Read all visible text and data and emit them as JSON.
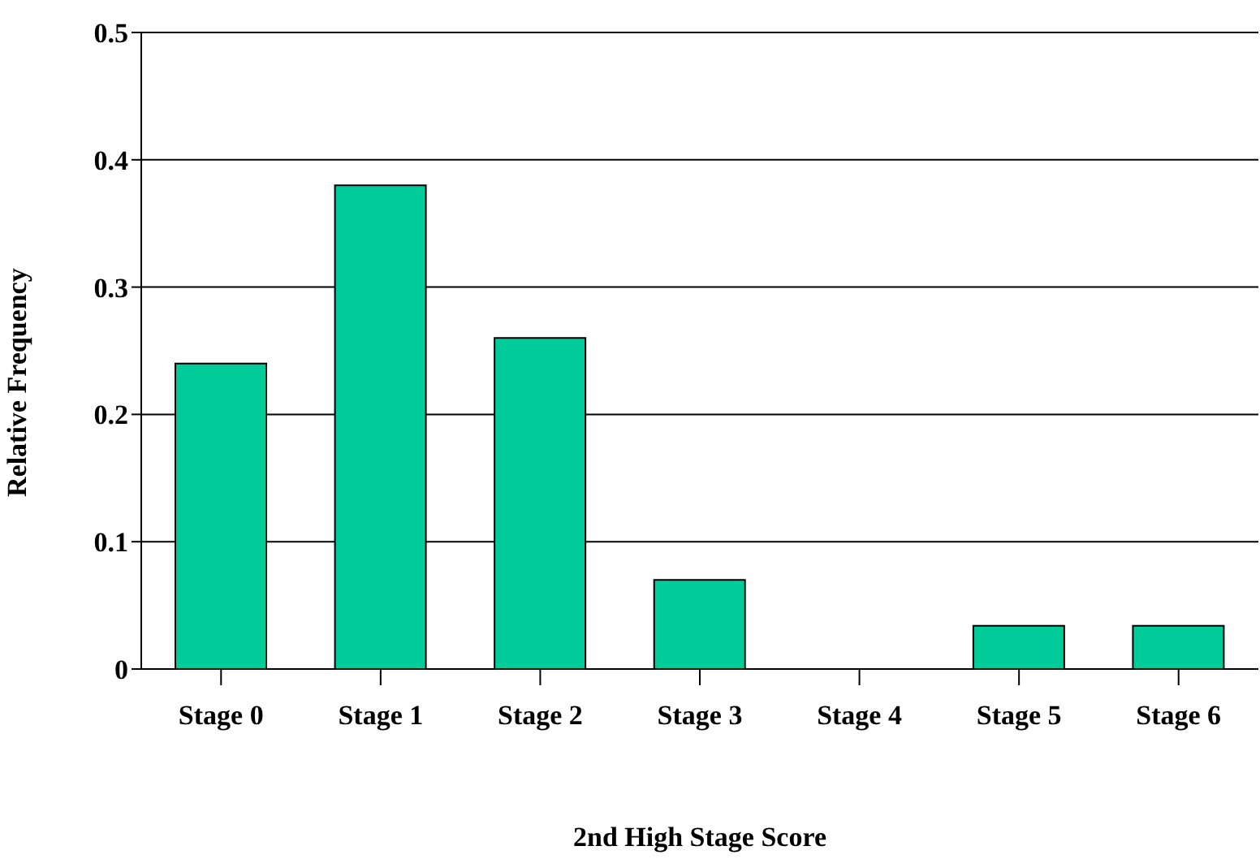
{
  "chart_data": {
    "type": "bar",
    "xlabel": "2nd High Stage Score",
    "ylabel": "Relative Frequency",
    "categories": [
      "Stage 0",
      "Stage 1",
      "Stage 2",
      "Stage 3",
      "Stage 4",
      "Stage 5",
      "Stage 6"
    ],
    "values": [
      0.24,
      0.38,
      0.26,
      0.07,
      0,
      0.034,
      0.034
    ],
    "color": "#00cc99",
    "ylim": [
      0,
      0.5
    ],
    "yticks": [
      0,
      0.1,
      0.2,
      0.3,
      0.4,
      0.5
    ],
    "grid": "y",
    "legend": false
  }
}
